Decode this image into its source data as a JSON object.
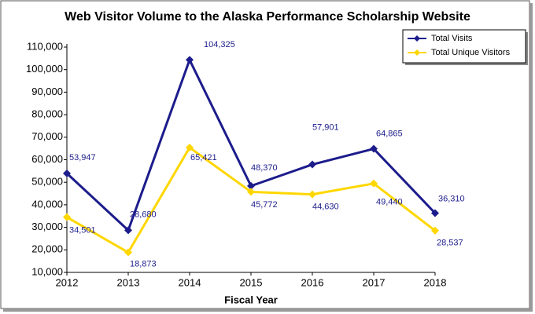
{
  "chart_data": {
    "type": "line",
    "title": "Web Visitor Volume to the Alaska Performance Scholarship Website",
    "x_label": "Fiscal Year",
    "x": [
      2012,
      2013,
      2014,
      2015,
      2016,
      2017,
      2018
    ],
    "xlim": [
      2012,
      2018
    ],
    "xticks": [
      2012,
      2013,
      2014,
      2015,
      2016,
      2017,
      2018
    ],
    "ylim": [
      10000,
      110000
    ],
    "yticks": [
      {
        "value": 10000,
        "label": "10,000"
      },
      {
        "value": 20000,
        "label": "20,000"
      },
      {
        "value": 30000,
        "label": "30,000"
      },
      {
        "value": 40000,
        "label": "40,000"
      },
      {
        "value": 50000,
        "label": "50,000"
      },
      {
        "value": 60000,
        "label": "60,000"
      },
      {
        "value": 70000,
        "label": "70,000"
      },
      {
        "value": 80000,
        "label": "80,000"
      },
      {
        "value": 90000,
        "label": "90,000"
      },
      {
        "value": 100000,
        "label": "100,000"
      },
      {
        "value": 110000,
        "label": "110,000"
      }
    ],
    "legend": "upper right",
    "series": [
      {
        "name": "Total Visits",
        "color": "#1c1c8c",
        "values": [
          53947,
          28680,
          104325,
          48370,
          57901,
          64865,
          36310
        ],
        "value_labels": [
          "53,947",
          "28,680",
          "104,325",
          "48,370",
          "57,901",
          "64,865",
          "36,310"
        ]
      },
      {
        "name": "Total Unique Visitors",
        "color": "#ffd700",
        "values": [
          34501,
          18873,
          65421,
          45772,
          44630,
          49440,
          28537
        ],
        "value_labels": [
          "34,501",
          "18,873",
          "65,421",
          "45,772",
          "44,630",
          "49,440",
          "28,537"
        ]
      }
    ]
  }
}
